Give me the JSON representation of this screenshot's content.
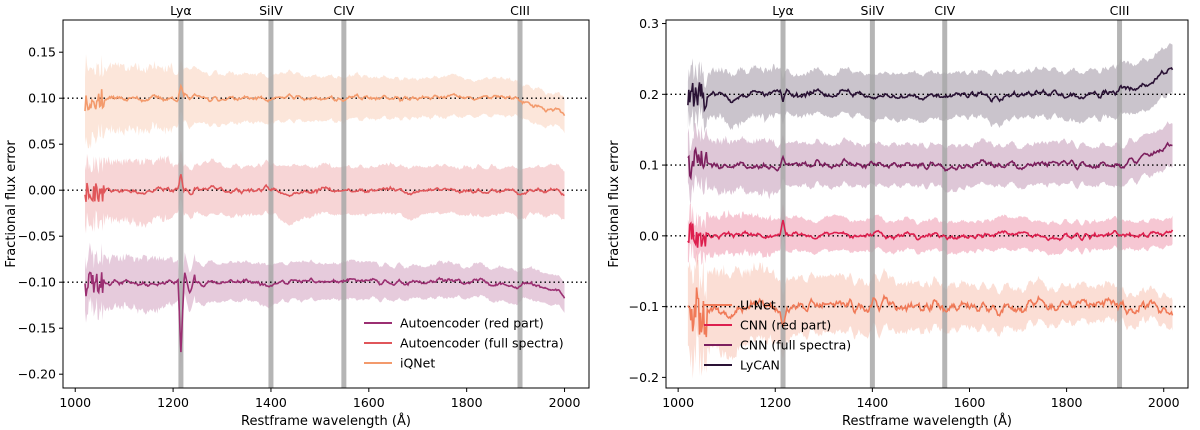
{
  "chart_data": [
    {
      "type": "line",
      "xlabel": "Restframe wavelength (Å)",
      "ylabel": "Fractional flux error",
      "xlim": [
        975,
        2050
      ],
      "ylim": [
        -0.215,
        0.185
      ],
      "xticks": [
        1000,
        1200,
        1400,
        1600,
        1800,
        2000
      ],
      "yticks": [
        0.15,
        0.1,
        0.05,
        0.0,
        -0.05,
        -0.1,
        -0.15,
        -0.2
      ],
      "ytick_labels": [
        "0.15",
        "0.10",
        "0.05",
        "0.00",
        "−0.05",
        "−0.10",
        "−0.15",
        "−0.20"
      ],
      "reference_lines": [
        0.1,
        0.0,
        -0.1
      ],
      "emission_lines": [
        {
          "label": "Lyα",
          "x": 1216
        },
        {
          "label": "SiIV",
          "x": 1400
        },
        {
          "label": "CIV",
          "x": 1549
        },
        {
          "label": "CIII",
          "x": 1909
        }
      ],
      "legend_position": "lower-right",
      "series": [
        {
          "name": "Autoencoder (red part)",
          "color": "#9b2f72",
          "offset": -0.1,
          "noise": 0.004,
          "band_start": 0.03,
          "band_end": 0.02,
          "end_trend": -0.014,
          "lya_dip": -0.078,
          "seed": 11
        },
        {
          "name": "Autoencoder (full spectra)",
          "color": "#e0565a",
          "offset": 0.0,
          "noise": 0.004,
          "band_start": 0.035,
          "band_end": 0.032,
          "end_trend": -0.004,
          "lya_dip": 0.018,
          "seed": 23
        },
        {
          "name": "iQNet",
          "color": "#f39a6c",
          "offset": 0.1,
          "noise": 0.004,
          "band_start": 0.04,
          "band_end": 0.022,
          "end_trend": -0.018,
          "lya_dip": 0.012,
          "seed": 37
        }
      ]
    },
    {
      "type": "line",
      "xlabel": "Restframe wavelength (Å)",
      "ylabel": "Fractional flux error",
      "xlim": [
        975,
        2050
      ],
      "ylim": [
        -0.215,
        0.305
      ],
      "xticks": [
        1000,
        1200,
        1400,
        1600,
        1800,
        2000
      ],
      "yticks": [
        0.3,
        0.2,
        0.1,
        0.0,
        -0.1,
        -0.2
      ],
      "ytick_labels": [
        "0.3",
        "0.2",
        "0.1",
        "0.0",
        "−0.1",
        "−0.2"
      ],
      "reference_lines": [
        0.2,
        0.1,
        0.0,
        -0.1
      ],
      "emission_lines": [
        {
          "label": "Lyα",
          "x": 1216
        },
        {
          "label": "SiIV",
          "x": 1400
        },
        {
          "label": "CIV",
          "x": 1549
        },
        {
          "label": "CIII",
          "x": 1909
        }
      ],
      "legend_position": "lower-center",
      "series": [
        {
          "name": "U-Net",
          "color": "#f07a58",
          "offset": -0.1,
          "noise": 0.012,
          "band_start": 0.06,
          "band_end": 0.025,
          "end_trend": 0.0,
          "lya_dip": -0.02,
          "seed": 53
        },
        {
          "name": "CNN (red part)",
          "color": "#dd1f4e",
          "offset": 0.0,
          "noise": 0.006,
          "band_start": 0.03,
          "band_end": 0.025,
          "end_trend": 0.004,
          "lya_dip": 0.02,
          "seed": 61
        },
        {
          "name": "CNN (full spectra)",
          "color": "#7c1f5e",
          "offset": 0.1,
          "noise": 0.007,
          "band_start": 0.04,
          "band_end": 0.035,
          "end_trend": 0.025,
          "lya_dip": 0.01,
          "seed": 71
        },
        {
          "name": "LyCAN",
          "color": "#2a1235",
          "offset": 0.2,
          "noise": 0.007,
          "band_start": 0.035,
          "band_end": 0.045,
          "end_trend": 0.038,
          "lya_dip": -0.015,
          "seed": 83
        }
      ]
    }
  ]
}
